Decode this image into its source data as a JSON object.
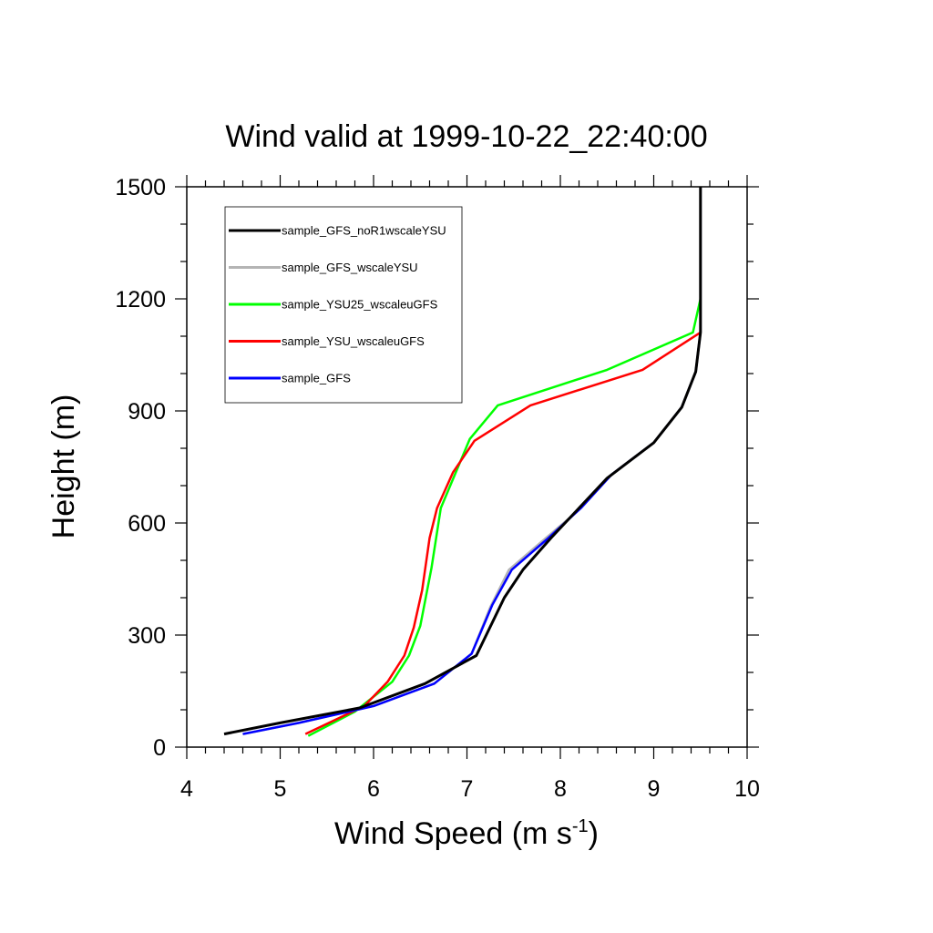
{
  "chart_data": {
    "type": "line",
    "title": "Wind valid at 1999-10-22_22:40:00",
    "xlabel_base": "Wind Speed (m s",
    "xlabel_sup": "-1",
    "xlabel_close": ")",
    "ylabel": "Height (m)",
    "xlim": [
      4,
      10
    ],
    "ylim": [
      0,
      1500
    ],
    "xticks": [
      4,
      5,
      6,
      7,
      8,
      9,
      10
    ],
    "yticks": [
      0,
      300,
      600,
      900,
      1200,
      1500
    ],
    "grid": false,
    "legend_position": "top-left",
    "series": [
      {
        "name": "sample_GFS_noR1wscaleYSU",
        "color": "#000000",
        "x": [
          4.4,
          5.0,
          5.85,
          6.55,
          7.1,
          7.4,
          7.6,
          7.9,
          8.2,
          8.5,
          9.0,
          9.3,
          9.45,
          9.5,
          9.5
        ],
        "y": [
          35,
          65,
          105,
          170,
          245,
          400,
          475,
          560,
          640,
          720,
          815,
          910,
          1005,
          1110,
          1500
        ]
      },
      {
        "name": "sample_GFS_wscaleYSU",
        "color": "#b4b4b4",
        "x": [
          4.6,
          5.2,
          6.0,
          6.65,
          7.05,
          7.25,
          7.45,
          7.8,
          8.2,
          8.55,
          9.0,
          9.3,
          9.45,
          9.5,
          9.5
        ],
        "y": [
          35,
          65,
          110,
          170,
          250,
          375,
          475,
          550,
          635,
          730,
          815,
          910,
          1005,
          1110,
          1500
        ]
      },
      {
        "name": "sample_YSU25_wscaleuGFS",
        "color": "#00ff00",
        "x": [
          5.3,
          5.8,
          6.2,
          6.38,
          6.5,
          6.62,
          6.72,
          6.88,
          7.03,
          7.33,
          8.5,
          9.42,
          9.5
        ],
        "y": [
          30,
          95,
          175,
          245,
          325,
          480,
          640,
          735,
          825,
          915,
          1010,
          1110,
          1200
        ]
      },
      {
        "name": "sample_YSU_wscaleuGFS",
        "color": "#ff0000",
        "x": [
          5.27,
          5.9,
          6.15,
          6.33,
          6.43,
          6.52,
          6.6,
          6.68,
          6.85,
          7.08,
          7.68,
          8.88,
          9.5
        ],
        "y": [
          35,
          110,
          175,
          245,
          320,
          420,
          560,
          640,
          735,
          820,
          915,
          1010,
          1110
        ]
      },
      {
        "name": "sample_GFS",
        "color": "#0000ff",
        "x": [
          4.6,
          5.2,
          6.0,
          6.65,
          7.05,
          7.27,
          7.48,
          7.85,
          8.22,
          8.55,
          9.0,
          9.3,
          9.45,
          9.5,
          9.5
        ],
        "y": [
          35,
          65,
          110,
          170,
          250,
          380,
          475,
          555,
          640,
          730,
          815,
          910,
          1005,
          1110,
          1500
        ]
      }
    ]
  }
}
